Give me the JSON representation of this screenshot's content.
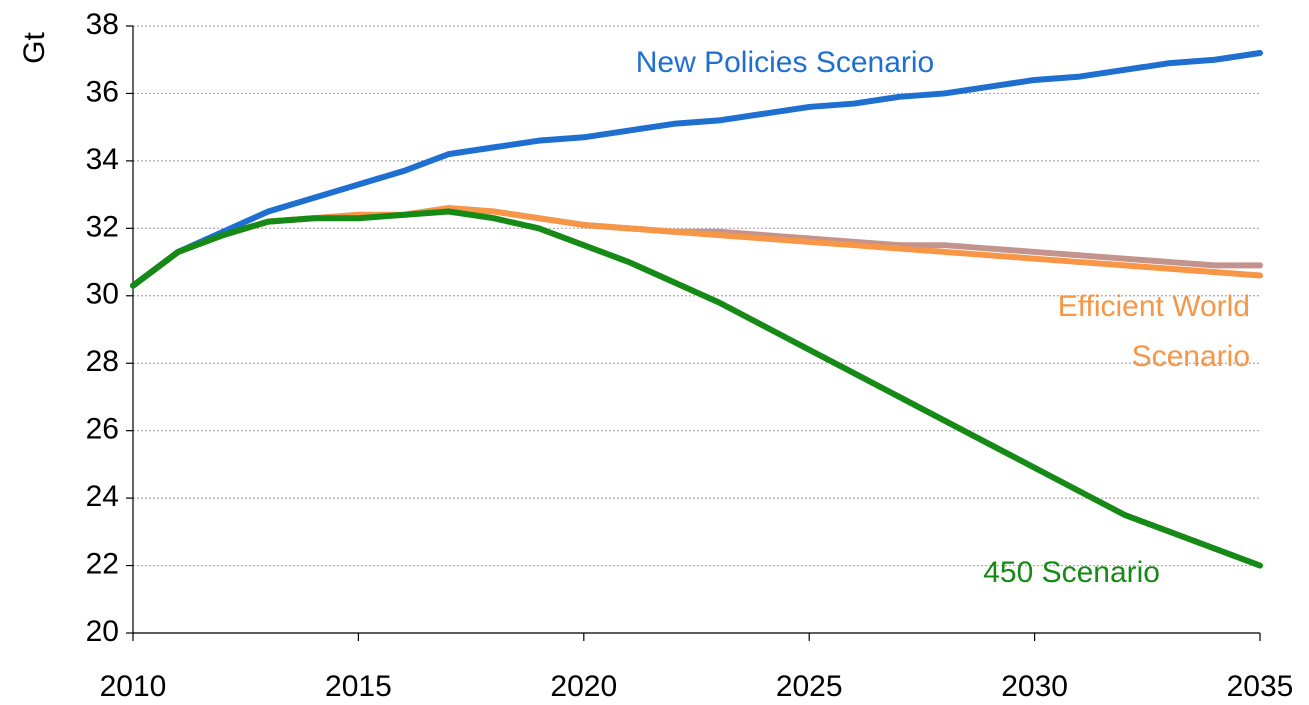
{
  "chart_data": {
    "type": "line",
    "y_label": "Gt",
    "x": [
      2010,
      2011,
      2012,
      2013,
      2014,
      2015,
      2016,
      2017,
      2018,
      2019,
      2020,
      2021,
      2022,
      2023,
      2024,
      2025,
      2026,
      2027,
      2028,
      2029,
      2030,
      2031,
      2032,
      2033,
      2034,
      2035
    ],
    "series": [
      {
        "color": "#c3948e",
        "values": [
          30.3,
          31.3,
          31.8,
          32.2,
          32.3,
          32.4,
          32.4,
          32.6,
          32.5,
          32.3,
          32.1,
          32.0,
          31.9,
          31.9,
          31.8,
          31.7,
          31.6,
          31.5,
          31.5,
          31.4,
          31.3,
          31.2,
          31.1,
          31.0,
          30.9,
          30.9
        ]
      },
      {
        "name": "Efficient World Scenario",
        "color": "#f79646",
        "values": [
          30.3,
          31.3,
          31.8,
          32.2,
          32.3,
          32.4,
          32.4,
          32.6,
          32.5,
          32.3,
          32.1,
          32.0,
          31.9,
          31.8,
          31.7,
          31.6,
          31.5,
          31.4,
          31.3,
          31.2,
          31.1,
          31.0,
          30.9,
          30.8,
          30.7,
          30.6
        ]
      },
      {
        "name": "New Policies Scenario",
        "color": "#1f6fd1",
        "values": [
          30.3,
          31.3,
          31.9,
          32.5,
          32.9,
          33.3,
          33.7,
          34.2,
          34.4,
          34.6,
          34.7,
          34.9,
          35.1,
          35.2,
          35.4,
          35.6,
          35.7,
          35.9,
          36.0,
          36.2,
          36.4,
          36.5,
          36.7,
          36.9,
          37.0,
          37.2
        ]
      },
      {
        "name": "450 Scenario",
        "color": "#168a16",
        "values": [
          30.3,
          31.3,
          31.8,
          32.2,
          32.3,
          32.3,
          32.4,
          32.5,
          32.3,
          32.0,
          31.5,
          31.0,
          30.4,
          29.8,
          29.1,
          28.4,
          27.7,
          27.0,
          26.3,
          25.6,
          24.9,
          24.2,
          23.5,
          23.0,
          22.5,
          22.0
        ]
      }
    ],
    "xlim": [
      2010,
      2035
    ],
    "xticks": [
      2010,
      2015,
      2020,
      2025,
      2030,
      2035
    ],
    "ylim": [
      20,
      38
    ],
    "yticks": [
      20,
      22,
      24,
      26,
      28,
      30,
      32,
      34,
      36,
      38
    ],
    "grid": true
  }
}
